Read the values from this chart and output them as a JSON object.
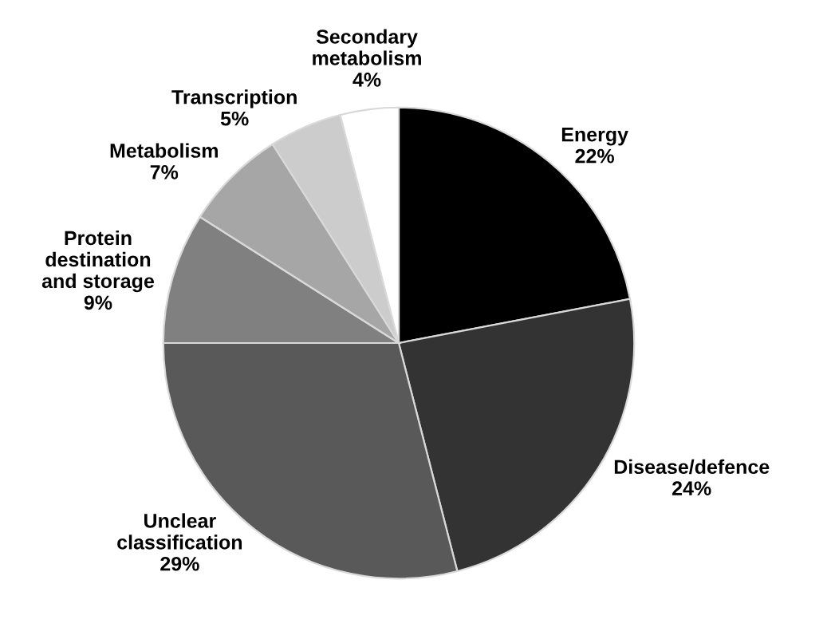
{
  "chart_data": {
    "type": "pie",
    "categories": [
      "Energy",
      "Disease/defence",
      "Unclear classification",
      "Protein destination and storage",
      "Metabolism",
      "Transcription",
      "Secondary metabolism"
    ],
    "values": [
      22,
      24,
      29,
      9,
      7,
      5,
      4
    ],
    "value_labels": [
      "22%",
      "24%",
      "29%",
      "9%",
      "7%",
      "5%",
      "4%"
    ],
    "colors": [
      "#000000",
      "#333333",
      "#595959",
      "#808080",
      "#a6a6a6",
      "#cccccc",
      "#ffffff"
    ]
  }
}
